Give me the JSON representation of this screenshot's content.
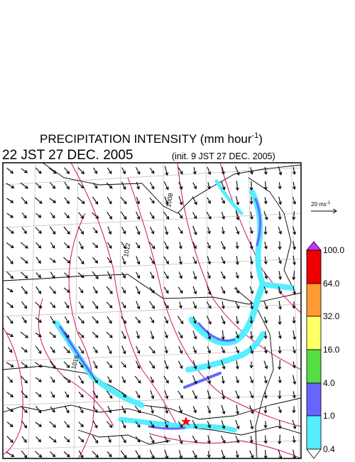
{
  "title": {
    "text": "PRECIPITATION INTENSITY (mm hour",
    "exponent": "-1",
    "close": ")"
  },
  "valid_time": "22 JST 27 DEC. 2005",
  "init_time": "(init. 9 JST 27 DEC. 2005)",
  "wind_scale": {
    "text": "20 ms",
    "exponent": "-1"
  },
  "colorbar": {
    "labels": [
      "100.0",
      "64.0",
      "32.0",
      "16.0",
      "4.0",
      "1.0",
      "0.4"
    ]
  },
  "contour_labels": [
    "1008",
    "1012",
    "1016"
  ]
}
